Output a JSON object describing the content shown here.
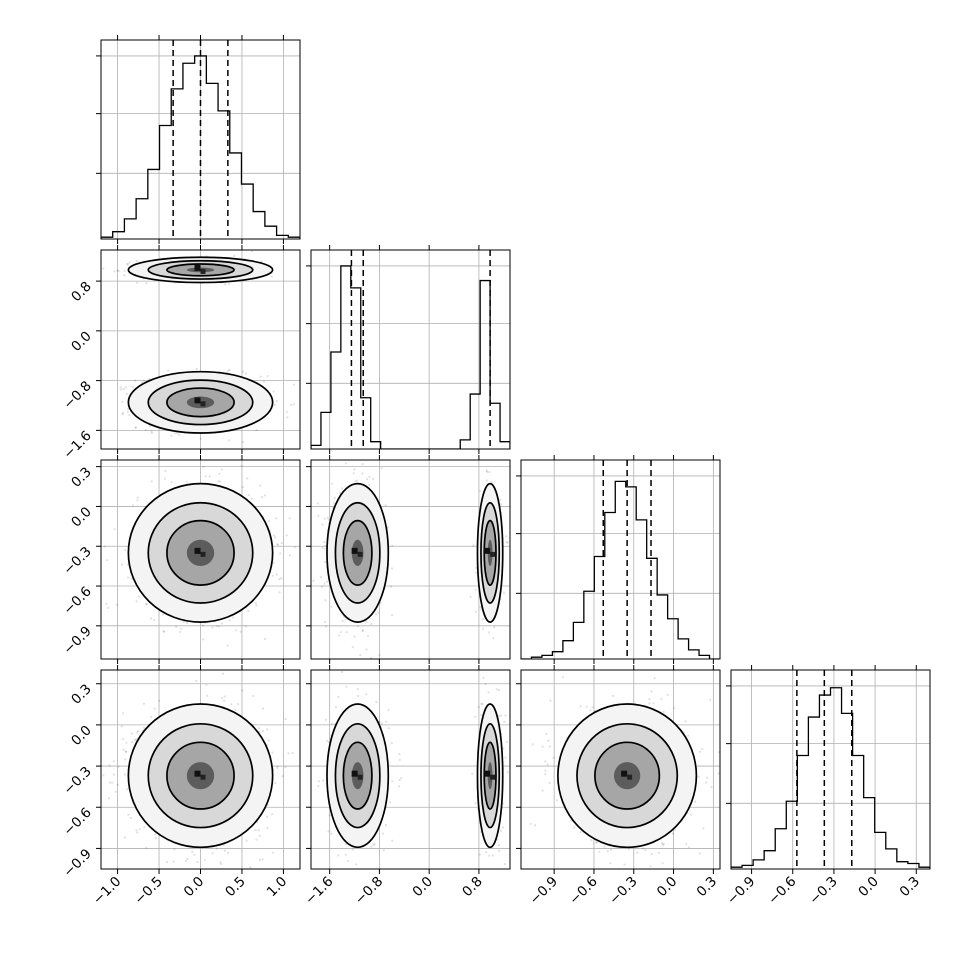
{
  "chart_data": {
    "type": "corner",
    "n_params": 4,
    "ranges": [
      [
        -1.2,
        1.2
      ],
      [
        -1.9,
        1.3
      ],
      [
        -1.15,
        0.35
      ],
      [
        -1.05,
        0.4
      ]
    ],
    "ticks": [
      [
        -1.0,
        -0.5,
        0.0,
        0.5,
        1.0
      ],
      [
        -1.6,
        -0.8,
        0.0,
        0.8
      ],
      [
        -0.9,
        -0.6,
        -0.3,
        0.0,
        0.3
      ],
      [
        -0.9,
        -0.6,
        -0.3,
        0.0,
        0.3
      ]
    ],
    "tick_labels": [
      [
        "−1.0",
        "−0.5",
        "0.0",
        "0.5",
        "1.0"
      ],
      [
        "−1.6",
        "−0.8",
        "0.0",
        "0.8"
      ],
      [
        "−0.9",
        "−0.6",
        "−0.3",
        "0.0",
        "0.3"
      ],
      [
        "−0.9",
        "−0.6",
        "−0.3",
        "0.0",
        "0.3"
      ]
    ],
    "quantile_lines": [
      [
        -0.33,
        0.0,
        0.33
      ],
      [
        -1.25,
        -1.06,
        0.98
      ],
      [
        -0.53,
        -0.35,
        -0.17
      ],
      [
        -0.57,
        -0.37,
        -0.17
      ]
    ],
    "histograms": [
      {
        "edges_range": [
          -1.2,
          1.2
        ],
        "counts": [
          0.01,
          0.04,
          0.11,
          0.22,
          0.38,
          0.62,
          0.82,
          0.96,
          1.0,
          0.85,
          0.7,
          0.47,
          0.3,
          0.15,
          0.07,
          0.02,
          0.01
        ]
      },
      {
        "edges_range": [
          -1.9,
          1.3
        ],
        "counts": [
          0.02,
          0.2,
          0.53,
          1.0,
          0.88,
          0.28,
          0.04,
          0.0,
          0.0,
          0.0,
          0.0,
          0.0,
          0.0,
          0.0,
          0.0,
          0.05,
          0.3,
          0.92,
          0.25,
          0.04
        ]
      },
      {
        "edges_range": [
          -1.15,
          0.35
        ],
        "counts": [
          0.0,
          0.01,
          0.02,
          0.04,
          0.1,
          0.2,
          0.37,
          0.56,
          0.8,
          0.97,
          0.94,
          0.76,
          0.55,
          0.35,
          0.22,
          0.11,
          0.05,
          0.02,
          0.0
        ]
      },
      {
        "edges_range": [
          -1.05,
          0.4
        ],
        "counts": [
          0.01,
          0.02,
          0.05,
          0.1,
          0.22,
          0.37,
          0.62,
          0.83,
          0.95,
          0.99,
          0.85,
          0.62,
          0.39,
          0.2,
          0.11,
          0.04,
          0.03,
          0.01
        ]
      }
    ],
    "params": [
      {
        "modes": [
          {
            "mean": 0.0,
            "sd": 0.3,
            "w": 1.0
          }
        ]
      },
      {
        "modes": [
          {
            "mean": -1.15,
            "sd": 0.17,
            "w": 0.6
          },
          {
            "mean": 0.98,
            "sd": 0.07,
            "w": 0.4
          }
        ]
      },
      {
        "modes": [
          {
            "mean": -0.35,
            "sd": 0.18,
            "w": 1.0
          }
        ]
      },
      {
        "modes": [
          {
            "mean": -0.37,
            "sd": 0.18,
            "w": 1.0
          }
        ]
      }
    ],
    "contour_levels": [
      0.39,
      0.86,
      0.99
    ],
    "colors": {
      "line": "#000000",
      "grid": "#b0b0b0",
      "points": "#000000",
      "density_max": "#3a3a3a"
    },
    "grid": true
  }
}
